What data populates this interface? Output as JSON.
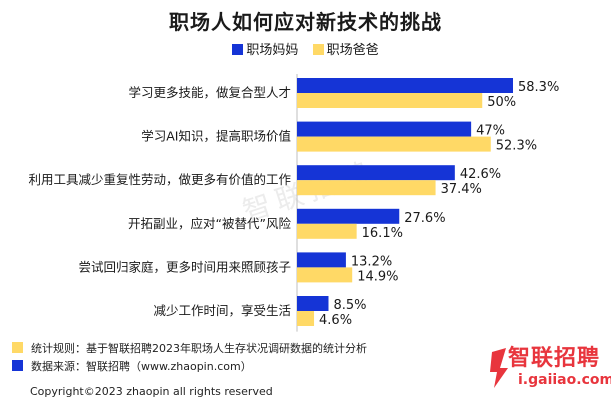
{
  "colors": {
    "mom": "#1534d6",
    "dad": "#ffd966",
    "watermark": "#e8353d"
  },
  "watermark_bg": "智联招聘",
  "chart_data": {
    "type": "bar",
    "orientation": "horizontal",
    "title": "职场人如何应对新技术的挑战",
    "categories": [
      "学习更多技能，做复合型人才",
      "学习AI知识，提高职场价值",
      "利用工具减少重复性劳动，做更多有价值的工作",
      "开拓副业，应对“被替代”风险",
      "尝试回归家庭，更多时间用来照顾孩子",
      "减少工作时间，享受生活"
    ],
    "series": [
      {
        "name": "职场妈妈",
        "values": [
          58.3,
          47,
          42.6,
          27.6,
          13.2,
          8.5
        ],
        "labels": [
          "58.3%",
          "47%",
          "42.6%",
          "27.6%",
          "13.2%",
          "8.5%"
        ]
      },
      {
        "name": "职场爸爸",
        "values": [
          50,
          52.3,
          37.4,
          16.1,
          14.9,
          4.6
        ],
        "labels": [
          "50%",
          "52.3%",
          "37.4%",
          "16.1%",
          "14.9%",
          "4.6%"
        ]
      }
    ],
    "xlim": [
      0,
      60
    ],
    "legend": "top-center",
    "grid": false
  },
  "notes": [
    {
      "text": "统计规则：基于智联招聘2023年职场人生存状况调研数据的统计分析"
    },
    {
      "text": "数据来源：智联招聘（www.zhaopin.com）"
    }
  ],
  "copyright": "Copyright©2023 zhaopin all rights reserved",
  "logo": {
    "text": "智联招聘",
    "url": "i.gaiiao.com"
  }
}
